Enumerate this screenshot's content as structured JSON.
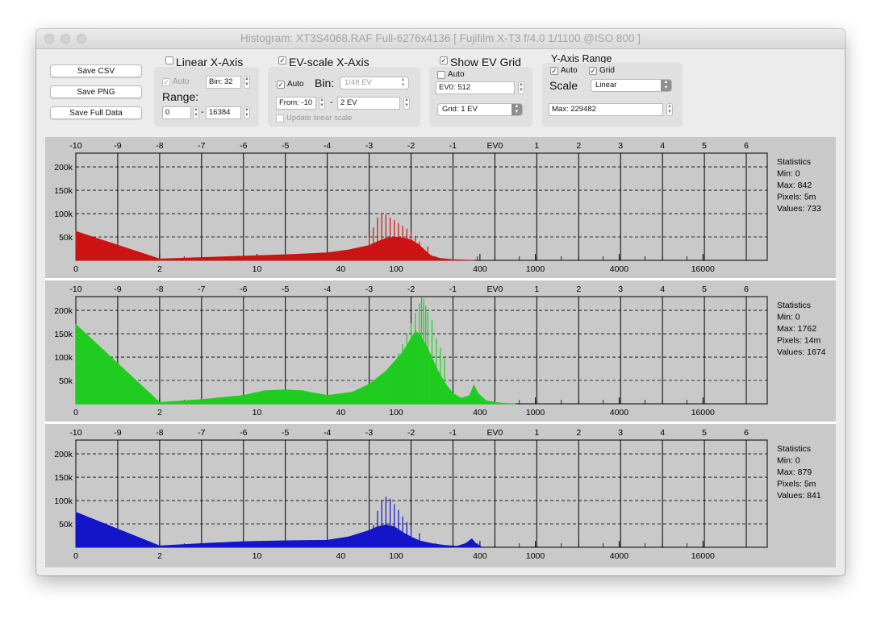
{
  "window": {
    "title": "Histogram: XT3S4068.RAF Full-6276x4136 [ Fujifilm X-T3 f/4.0 1/1100 @ISO 800 ]"
  },
  "buttons": {
    "save_csv": "Save CSV",
    "save_png": "Save PNG",
    "save_full": "Save Full Data"
  },
  "linear_axis": {
    "label": "Linear X-Axis",
    "checked": false,
    "auto_label": "Auto",
    "auto_checked": true,
    "bin_value": "Bin: 32",
    "range_label": "Range:",
    "range_from": "0",
    "range_sep": "-",
    "range_to": "16384"
  },
  "ev_axis": {
    "label": "EV-scale X-Axis",
    "checked": true,
    "auto_label": "Auto",
    "auto_checked": true,
    "bin_label": "Bin:",
    "bin_value": "1/48 EV",
    "from_value": "From: -10",
    "range_sep": "-",
    "to_value": "2 EV",
    "update_label": "Update linear scale",
    "update_checked": false
  },
  "ev_grid": {
    "label": "Show EV Grid",
    "checked": true,
    "auto_label": "Auto",
    "auto_checked": false,
    "ev0_value": "EV0: 512",
    "grid_value": "Grid: 1 EV"
  },
  "y_axis": {
    "label": "Y-Axis Range",
    "auto_label": "Auto",
    "auto_checked": true,
    "grid_label": "Grid",
    "grid_checked": true,
    "scale_label": "Scale",
    "scale_value": "Linear",
    "max_value": "Max: 229482"
  },
  "colors": {
    "red": "#cc1212",
    "green": "#1fcc1f",
    "blue": "#1414c8"
  },
  "chart_data": {
    "type": "bar",
    "ev_ticks": [
      "-10",
      "-9",
      "-8",
      "-7",
      "-6",
      "-5",
      "-4",
      "-3",
      "-2",
      "-1",
      "EV0",
      "1",
      "2",
      "3",
      "4",
      "5",
      "6"
    ],
    "ev_range": [
      -10,
      6.5
    ],
    "linear_ticks": [
      {
        "label": "0",
        "value": 0
      },
      {
        "label": "2",
        "value": 2
      },
      {
        "label": "10",
        "value": 10
      },
      {
        "label": "40",
        "value": 40
      },
      {
        "label": "100",
        "value": 100
      },
      {
        "label": "400",
        "value": 400
      },
      {
        "label": "1000",
        "value": 1000
      },
      {
        "label": "4000",
        "value": 4000
      },
      {
        "label": "16000",
        "value": 16000
      }
    ],
    "y_ticks": [
      {
        "label": "50k",
        "value": 50000
      },
      {
        "label": "100k",
        "value": 100000
      },
      {
        "label": "150k",
        "value": 150000
      },
      {
        "label": "200k",
        "value": 200000
      }
    ],
    "ylim": [
      0,
      229482
    ],
    "grid": true,
    "series": [
      {
        "name": "red",
        "stats": {
          "title": "Statistics",
          "min": "Min: 0",
          "max": "Max: 842",
          "pixels": "Pixels: 5m",
          "values": "Values: 733"
        },
        "points": [
          [
            -10,
            62000
          ],
          [
            -8,
            3000
          ],
          [
            -7,
            6000
          ],
          [
            -6,
            9000
          ],
          [
            -5,
            12000
          ],
          [
            -4,
            16000
          ],
          [
            -3.5,
            22000
          ],
          [
            -3,
            32000
          ],
          [
            -2.8,
            40000
          ],
          [
            -2.6,
            47000
          ],
          [
            -2.4,
            50000
          ],
          [
            -2.2,
            48000
          ],
          [
            -2,
            44000
          ],
          [
            -1.9,
            38000
          ],
          [
            -1.8,
            33000
          ],
          [
            -1.7,
            24000
          ],
          [
            -1.6,
            15000
          ],
          [
            -1.5,
            9000
          ],
          [
            -1.3,
            4000
          ],
          [
            -1,
            1500
          ],
          [
            -0.5,
            0
          ]
        ],
        "spikes": [
          [
            -3.0,
            52000
          ],
          [
            -2.9,
            70000
          ],
          [
            -2.8,
            92000
          ],
          [
            -2.7,
            100000
          ],
          [
            -2.6,
            98000
          ],
          [
            -2.5,
            92000
          ],
          [
            -2.4,
            86000
          ],
          [
            -2.3,
            80000
          ],
          [
            -2.2,
            74000
          ],
          [
            -2.1,
            68000
          ],
          [
            -2.0,
            62000
          ],
          [
            -1.9,
            52000
          ],
          [
            -1.8,
            40000
          ],
          [
            -1.6,
            30000
          ]
        ]
      },
      {
        "name": "green",
        "stats": {
          "title": "Statistics",
          "min": "Min: 0",
          "max": "Max: 1762",
          "pixels": "Pixels: 14m",
          "values": "Values: 1674"
        },
        "points": [
          [
            -10,
            170000
          ],
          [
            -8,
            3000
          ],
          [
            -7,
            9000
          ],
          [
            -6,
            18000
          ],
          [
            -5.5,
            28000
          ],
          [
            -5,
            30000
          ],
          [
            -4.6,
            28000
          ],
          [
            -4,
            18000
          ],
          [
            -3.4,
            25000
          ],
          [
            -3,
            42000
          ],
          [
            -2.6,
            70000
          ],
          [
            -2.2,
            110000
          ],
          [
            -2,
            140000
          ],
          [
            -1.9,
            155000
          ],
          [
            -1.8,
            150000
          ],
          [
            -1.6,
            118000
          ],
          [
            -1.4,
            78000
          ],
          [
            -1.2,
            45000
          ],
          [
            -1,
            22000
          ],
          [
            -0.8,
            12000
          ],
          [
            -0.6,
            18000
          ],
          [
            -0.5,
            40000
          ],
          [
            -0.4,
            22000
          ],
          [
            -0.2,
            6000
          ],
          [
            0.2,
            1000
          ],
          [
            0.5,
            0
          ]
        ],
        "spikes": [
          [
            -2.6,
            60000
          ],
          [
            -2.4,
            90000
          ],
          [
            -2.3,
            108000
          ],
          [
            -2.2,
            128000
          ],
          [
            -2.1,
            150000
          ],
          [
            -2.0,
            172000
          ],
          [
            -1.9,
            195000
          ],
          [
            -1.8,
            215000
          ],
          [
            -1.75,
            228000
          ],
          [
            -1.7,
            225000
          ],
          [
            -1.65,
            210000
          ],
          [
            -1.6,
            196000
          ],
          [
            -1.5,
            180000
          ],
          [
            -1.4,
            140000
          ],
          [
            -1.3,
            120000
          ],
          [
            -1.2,
            100000
          ]
        ]
      },
      {
        "name": "blue",
        "stats": {
          "title": "Statistics",
          "min": "Min: 0",
          "max": "Max: 879",
          "pixels": "Pixels: 5m",
          "values": "Values: 841"
        },
        "points": [
          [
            -10,
            75000
          ],
          [
            -8,
            3000
          ],
          [
            -7,
            8000
          ],
          [
            -6,
            12000
          ],
          [
            -5,
            14000
          ],
          [
            -4,
            15000
          ],
          [
            -3.5,
            22000
          ],
          [
            -3,
            36000
          ],
          [
            -2.8,
            44000
          ],
          [
            -2.6,
            48000
          ],
          [
            -2.4,
            44000
          ],
          [
            -2.2,
            32000
          ],
          [
            -2,
            22000
          ],
          [
            -1.8,
            14000
          ],
          [
            -1.5,
            8000
          ],
          [
            -1.2,
            4000
          ],
          [
            -0.9,
            2000
          ],
          [
            -0.7,
            8000
          ],
          [
            -0.55,
            18000
          ],
          [
            -0.45,
            8000
          ],
          [
            -0.3,
            0
          ]
        ],
        "spikes": [
          [
            -3.0,
            30000
          ],
          [
            -2.9,
            48000
          ],
          [
            -2.8,
            78000
          ],
          [
            -2.7,
            100000
          ],
          [
            -2.6,
            108000
          ],
          [
            -2.5,
            104000
          ],
          [
            -2.4,
            92000
          ],
          [
            -2.3,
            80000
          ],
          [
            -2.2,
            66000
          ],
          [
            -2.1,
            54000
          ],
          [
            -2.0,
            44000
          ],
          [
            -1.8,
            30000
          ]
        ]
      }
    ]
  }
}
